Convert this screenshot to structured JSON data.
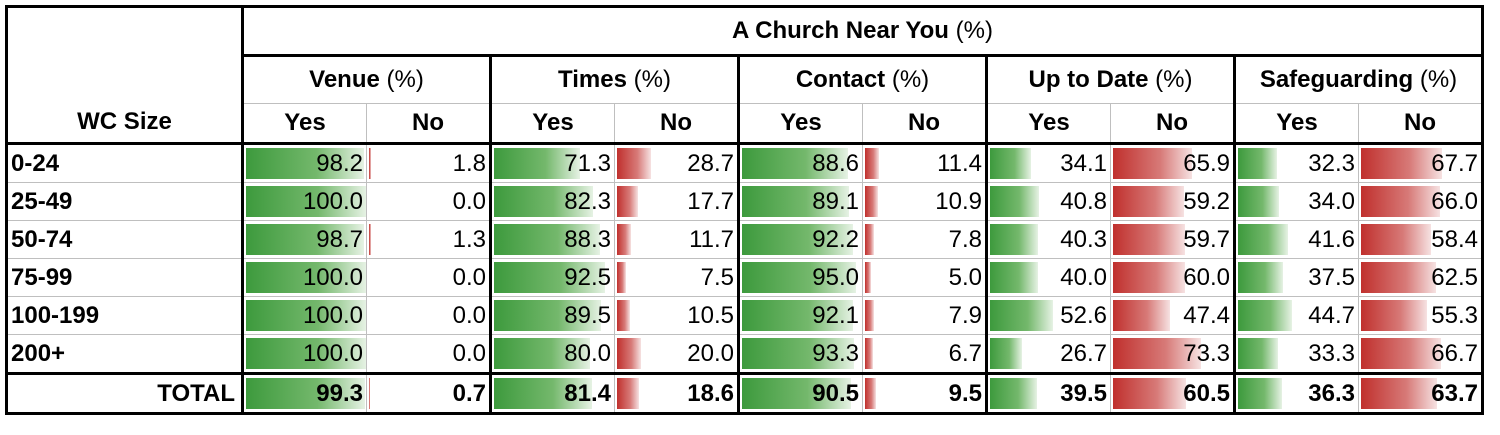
{
  "chart_data": {
    "type": "table",
    "title": "A Church Near You",
    "title_unit": "(%)",
    "row_header": "WC Size",
    "groups": [
      {
        "name": "Venue",
        "unit": "(%)"
      },
      {
        "name": "Times",
        "unit": "(%)"
      },
      {
        "name": "Contact",
        "unit": "(%)"
      },
      {
        "name": "Up to Date",
        "unit": "(%)"
      },
      {
        "name": "Safeguarding",
        "unit": "(%)"
      }
    ],
    "subheaders": [
      "Yes",
      "No"
    ],
    "rows": [
      {
        "label": "0-24",
        "values": [
          [
            98.2,
            1.8
          ],
          [
            71.3,
            28.7
          ],
          [
            88.6,
            11.4
          ],
          [
            34.1,
            65.9
          ],
          [
            32.3,
            67.7
          ]
        ]
      },
      {
        "label": "25-49",
        "values": [
          [
            100.0,
            0.0
          ],
          [
            82.3,
            17.7
          ],
          [
            89.1,
            10.9
          ],
          [
            40.8,
            59.2
          ],
          [
            34.0,
            66.0
          ]
        ]
      },
      {
        "label": "50-74",
        "values": [
          [
            98.7,
            1.3
          ],
          [
            88.3,
            11.7
          ],
          [
            92.2,
            7.8
          ],
          [
            40.3,
            59.7
          ],
          [
            41.6,
            58.4
          ]
        ]
      },
      {
        "label": "75-99",
        "values": [
          [
            100.0,
            0.0
          ],
          [
            92.5,
            7.5
          ],
          [
            95.0,
            5.0
          ],
          [
            40.0,
            60.0
          ],
          [
            37.5,
            62.5
          ]
        ]
      },
      {
        "label": "100-199",
        "values": [
          [
            100.0,
            0.0
          ],
          [
            89.5,
            10.5
          ],
          [
            92.1,
            7.9
          ],
          [
            52.6,
            47.4
          ],
          [
            44.7,
            55.3
          ]
        ]
      },
      {
        "label": "200+",
        "values": [
          [
            100.0,
            0.0
          ],
          [
            80.0,
            20.0
          ],
          [
            93.3,
            6.7
          ],
          [
            26.7,
            73.3
          ],
          [
            33.3,
            66.7
          ]
        ]
      }
    ],
    "total": {
      "label": "TOTAL",
      "values": [
        [
          99.3,
          0.7
        ],
        [
          81.4,
          18.6
        ],
        [
          90.5,
          9.5
        ],
        [
          39.5,
          60.5
        ],
        [
          36.3,
          63.7
        ]
      ]
    },
    "colors": {
      "yes_bar": "#3d9a3d",
      "no_bar": "#c0302d"
    }
  }
}
